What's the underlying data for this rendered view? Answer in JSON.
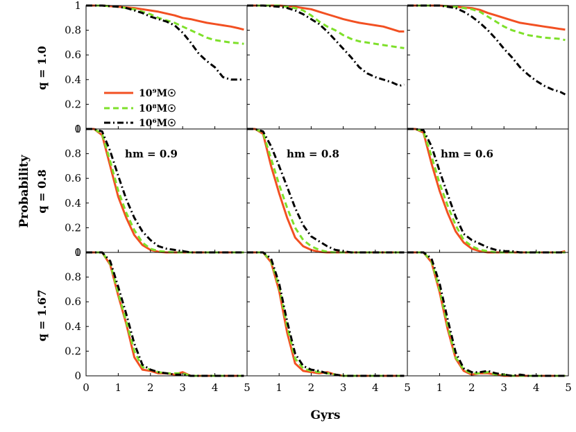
{
  "chart_data": {
    "type": "line",
    "xlabel": "Gyrs",
    "ylabel": "Probability",
    "xlim": [
      0,
      5
    ],
    "ylim": [
      0,
      1
    ],
    "xticks": [
      "0",
      "1",
      "2",
      "3",
      "4",
      "5"
    ],
    "yticks": [
      "0",
      "0.2",
      "0.4",
      "0.6",
      "0.8",
      "1"
    ],
    "row_labels": [
      "q = 1.0",
      "q = 0.8",
      "q = 1.67"
    ],
    "col_labels": [
      "hm = 0.9",
      "hm = 0.8",
      "hm = 0.6"
    ],
    "legend": [
      {
        "label": "10⁹M☉",
        "color": "#f25022",
        "dash": "solid"
      },
      {
        "label": "10⁸M☉",
        "color": "#7ee02a",
        "dash": "dashed"
      },
      {
        "label": "10⁶M☉",
        "color": "#000000",
        "dash": "dashdot"
      }
    ],
    "x": [
      0,
      0.25,
      0.5,
      0.75,
      1,
      1.25,
      1.5,
      1.75,
      2,
      2.25,
      2.5,
      2.75,
      3,
      3.25,
      3.5,
      3.75,
      4,
      4.25,
      4.5,
      4.75,
      4.9
    ],
    "panels": [
      {
        "row": 0,
        "col": 0,
        "series": [
          [
            1,
            1,
            1,
            0.995,
            0.99,
            0.985,
            0.98,
            0.97,
            0.96,
            0.95,
            0.935,
            0.92,
            0.9,
            0.89,
            0.875,
            0.86,
            0.85,
            0.84,
            0.83,
            0.815,
            0.805
          ],
          [
            1,
            1,
            1,
            0.995,
            0.99,
            0.98,
            0.97,
            0.95,
            0.93,
            0.9,
            0.88,
            0.86,
            0.83,
            0.8,
            0.77,
            0.74,
            0.72,
            0.71,
            0.7,
            0.695,
            0.69
          ],
          [
            1,
            1,
            1,
            0.995,
            0.99,
            0.98,
            0.96,
            0.94,
            0.91,
            0.89,
            0.87,
            0.84,
            0.78,
            0.7,
            0.61,
            0.55,
            0.5,
            0.42,
            0.4,
            0.4,
            0.4
          ]
        ]
      },
      {
        "row": 0,
        "col": 1,
        "series": [
          [
            1,
            1,
            1,
            1,
            1,
            0.995,
            0.99,
            0.98,
            0.97,
            0.95,
            0.93,
            0.91,
            0.89,
            0.875,
            0.86,
            0.85,
            0.84,
            0.83,
            0.81,
            0.79,
            0.79
          ],
          [
            1,
            1,
            1,
            1,
            1,
            0.99,
            0.98,
            0.96,
            0.92,
            0.87,
            0.83,
            0.8,
            0.76,
            0.73,
            0.71,
            0.7,
            0.69,
            0.68,
            0.67,
            0.66,
            0.655
          ],
          [
            1,
            1,
            1,
            0.995,
            0.99,
            0.98,
            0.96,
            0.93,
            0.89,
            0.85,
            0.79,
            0.72,
            0.65,
            0.58,
            0.5,
            0.45,
            0.42,
            0.4,
            0.38,
            0.35,
            0.36
          ]
        ]
      },
      {
        "row": 0,
        "col": 2,
        "series": [
          [
            1,
            1,
            1,
            1,
            1,
            0.995,
            0.99,
            0.985,
            0.98,
            0.965,
            0.94,
            0.92,
            0.9,
            0.88,
            0.86,
            0.85,
            0.84,
            0.83,
            0.82,
            0.81,
            0.805
          ],
          [
            1,
            1,
            1,
            1,
            1,
            0.995,
            0.99,
            0.98,
            0.97,
            0.95,
            0.91,
            0.87,
            0.83,
            0.8,
            0.78,
            0.76,
            0.75,
            0.74,
            0.735,
            0.73,
            0.72
          ],
          [
            1,
            1,
            1,
            1,
            1,
            0.99,
            0.98,
            0.95,
            0.91,
            0.86,
            0.8,
            0.73,
            0.65,
            0.58,
            0.5,
            0.44,
            0.39,
            0.35,
            0.32,
            0.3,
            0.28
          ]
        ]
      },
      {
        "row": 1,
        "col": 0,
        "series": [
          [
            1,
            1,
            0.95,
            0.7,
            0.45,
            0.28,
            0.14,
            0.06,
            0.02,
            0.005,
            0,
            0,
            0,
            0,
            0,
            0,
            0,
            0,
            0,
            0,
            0
          ],
          [
            1,
            1,
            0.96,
            0.74,
            0.5,
            0.32,
            0.18,
            0.08,
            0.03,
            0.01,
            0.005,
            0,
            0,
            0,
            0,
            0,
            0,
            0,
            0,
            0,
            0
          ],
          [
            1,
            1,
            0.98,
            0.82,
            0.62,
            0.43,
            0.28,
            0.17,
            0.1,
            0.05,
            0.03,
            0.02,
            0.01,
            0,
            0,
            0,
            0,
            0,
            0,
            0,
            0
          ]
        ]
      },
      {
        "row": 1,
        "col": 1,
        "series": [
          [
            1,
            1,
            0.96,
            0.7,
            0.48,
            0.28,
            0.12,
            0.05,
            0.02,
            0.005,
            0,
            0,
            0,
            0,
            0,
            0,
            0,
            0,
            0,
            0,
            0
          ],
          [
            1,
            1,
            0.97,
            0.76,
            0.55,
            0.36,
            0.2,
            0.1,
            0.05,
            0.02,
            0.005,
            0,
            0,
            0,
            0,
            0,
            0,
            0,
            0,
            0,
            0
          ],
          [
            1,
            1,
            0.98,
            0.86,
            0.7,
            0.53,
            0.36,
            0.22,
            0.13,
            0.09,
            0.05,
            0.02,
            0.01,
            0,
            0,
            0,
            0,
            0,
            0,
            0,
            0
          ]
        ]
      },
      {
        "row": 1,
        "col": 2,
        "series": [
          [
            1,
            1,
            0.97,
            0.72,
            0.5,
            0.32,
            0.17,
            0.08,
            0.03,
            0.01,
            0,
            0,
            0,
            0,
            0,
            0,
            0,
            0,
            0,
            0,
            0.01
          ],
          [
            1,
            1,
            0.98,
            0.78,
            0.56,
            0.38,
            0.22,
            0.1,
            0.05,
            0.02,
            0.01,
            0,
            0,
            0,
            0,
            0,
            0,
            0,
            0,
            0,
            0
          ],
          [
            1,
            1,
            0.99,
            0.86,
            0.66,
            0.47,
            0.29,
            0.15,
            0.1,
            0.07,
            0.04,
            0.02,
            0.01,
            0.01,
            0,
            0,
            0,
            0,
            0,
            0,
            0
          ]
        ]
      },
      {
        "row": 2,
        "col": 0,
        "series": [
          [
            1,
            1,
            1,
            0.9,
            0.65,
            0.42,
            0.15,
            0.05,
            0.04,
            0.02,
            0.02,
            0.01,
            0.03,
            0,
            0,
            0,
            0,
            0,
            0,
            0,
            0
          ],
          [
            1,
            1,
            1,
            0.91,
            0.67,
            0.44,
            0.2,
            0.07,
            0.05,
            0.03,
            0.02,
            0.02,
            0.02,
            0,
            0,
            0,
            0,
            0,
            0,
            0,
            0
          ],
          [
            1,
            1,
            1,
            0.93,
            0.72,
            0.5,
            0.26,
            0.09,
            0.05,
            0.03,
            0.02,
            0.01,
            0.01,
            0,
            0,
            0,
            0,
            0,
            0,
            0,
            0
          ]
        ]
      },
      {
        "row": 2,
        "col": 1,
        "series": [
          [
            1,
            1,
            1,
            0.92,
            0.69,
            0.35,
            0.1,
            0.04,
            0.03,
            0.02,
            0.03,
            0.01,
            0,
            0,
            0,
            0,
            0,
            0,
            0,
            0,
            0
          ],
          [
            1,
            1,
            1,
            0.93,
            0.72,
            0.4,
            0.14,
            0.06,
            0.04,
            0.03,
            0.02,
            0.01,
            0,
            0,
            0,
            0,
            0,
            0,
            0,
            0,
            0
          ],
          [
            1,
            1,
            1,
            0.95,
            0.75,
            0.44,
            0.18,
            0.08,
            0.05,
            0.04,
            0.02,
            0.01,
            0,
            0,
            0,
            0,
            0,
            0,
            0,
            0,
            0
          ]
        ]
      },
      {
        "row": 2,
        "col": 2,
        "series": [
          [
            1,
            1,
            1,
            0.92,
            0.68,
            0.38,
            0.14,
            0.04,
            0.01,
            0.02,
            0.02,
            0.01,
            0,
            0,
            0,
            0,
            0,
            0,
            0,
            0,
            0
          ],
          [
            1,
            1,
            1,
            0.93,
            0.7,
            0.41,
            0.15,
            0.05,
            0.02,
            0.02,
            0.03,
            0.01,
            0.01,
            0,
            0,
            0,
            0,
            0,
            0,
            0,
            0
          ],
          [
            1,
            1,
            1,
            0.95,
            0.75,
            0.46,
            0.19,
            0.06,
            0.03,
            0.03,
            0.04,
            0.02,
            0.01,
            0,
            0.01,
            0,
            0,
            0,
            0,
            0,
            0
          ]
        ]
      }
    ]
  }
}
